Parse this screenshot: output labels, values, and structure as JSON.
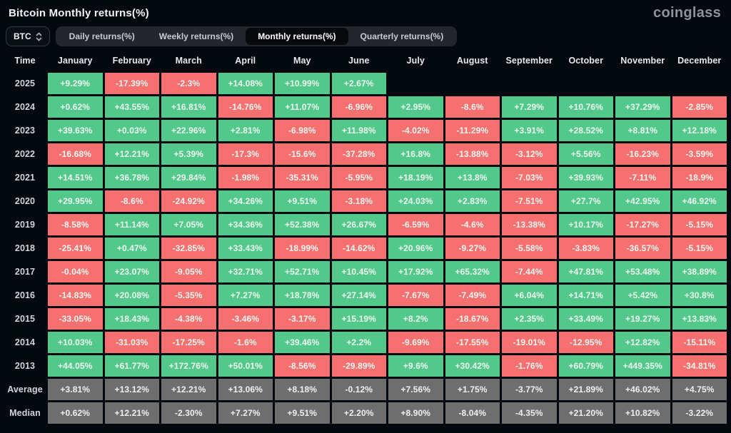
{
  "header": {
    "title": "Bitcoin Monthly returns(%)",
    "logo": "coinglass"
  },
  "toolbar": {
    "coin_selector": "BTC",
    "tabs": [
      {
        "label": "Daily returns(%)",
        "active": false
      },
      {
        "label": "Weekly returns(%)",
        "active": false
      },
      {
        "label": "Monthly returns(%)",
        "active": true
      },
      {
        "label": "Quarterly returns(%)",
        "active": false
      }
    ]
  },
  "colors": {
    "positive": "#52c98a",
    "negative": "#f77070",
    "neutral": "#6e6e6e",
    "background": "#04080f"
  },
  "chart_data": {
    "type": "table",
    "title": "Bitcoin Monthly returns(%)",
    "columns": [
      "Time",
      "January",
      "February",
      "March",
      "April",
      "May",
      "June",
      "July",
      "August",
      "September",
      "October",
      "November",
      "December"
    ],
    "rows": [
      {
        "label": "2025",
        "values": [
          "+9.29%",
          "-17.39%",
          "-2.3%",
          "+14.08%",
          "+10.99%",
          "+2.67%",
          "",
          "",
          "",
          "",
          "",
          ""
        ]
      },
      {
        "label": "2024",
        "values": [
          "+0.62%",
          "+43.55%",
          "+16.81%",
          "-14.76%",
          "+11.07%",
          "-6.96%",
          "+2.95%",
          "-8.6%",
          "+7.29%",
          "+10.76%",
          "+37.29%",
          "-2.85%"
        ]
      },
      {
        "label": "2023",
        "values": [
          "+39.63%",
          "+0.03%",
          "+22.96%",
          "+2.81%",
          "-6.98%",
          "+11.98%",
          "-4.02%",
          "-11.29%",
          "+3.91%",
          "+28.52%",
          "+8.81%",
          "+12.18%"
        ]
      },
      {
        "label": "2022",
        "values": [
          "-16.68%",
          "+12.21%",
          "+5.39%",
          "-17.3%",
          "-15.6%",
          "-37.28%",
          "+16.8%",
          "-13.88%",
          "-3.12%",
          "+5.56%",
          "-16.23%",
          "-3.59%"
        ]
      },
      {
        "label": "2021",
        "values": [
          "+14.51%",
          "+36.78%",
          "+29.84%",
          "-1.98%",
          "-35.31%",
          "-5.95%",
          "+18.19%",
          "+13.8%",
          "-7.03%",
          "+39.93%",
          "-7.11%",
          "-18.9%"
        ]
      },
      {
        "label": "2020",
        "values": [
          "+29.95%",
          "-8.6%",
          "-24.92%",
          "+34.26%",
          "+9.51%",
          "-3.18%",
          "+24.03%",
          "+2.83%",
          "-7.51%",
          "+27.7%",
          "+42.95%",
          "+46.92%"
        ]
      },
      {
        "label": "2019",
        "values": [
          "-8.58%",
          "+11.14%",
          "+7.05%",
          "+34.36%",
          "+52.38%",
          "+26.67%",
          "-6.59%",
          "-4.6%",
          "-13.38%",
          "+10.17%",
          "-17.27%",
          "-5.15%"
        ]
      },
      {
        "label": "2018",
        "values": [
          "-25.41%",
          "+0.47%",
          "-32.85%",
          "+33.43%",
          "-18.99%",
          "-14.62%",
          "+20.96%",
          "-9.27%",
          "-5.58%",
          "-3.83%",
          "-36.57%",
          "-5.15%"
        ]
      },
      {
        "label": "2017",
        "values": [
          "-0.04%",
          "+23.07%",
          "-9.05%",
          "+32.71%",
          "+52.71%",
          "+10.45%",
          "+17.92%",
          "+65.32%",
          "-7.44%",
          "+47.81%",
          "+53.48%",
          "+38.89%"
        ]
      },
      {
        "label": "2016",
        "values": [
          "-14.83%",
          "+20.08%",
          "-5.35%",
          "+7.27%",
          "+18.78%",
          "+27.14%",
          "-7.67%",
          "-7.49%",
          "+6.04%",
          "+14.71%",
          "+5.42%",
          "+30.8%"
        ]
      },
      {
        "label": "2015",
        "values": [
          "-33.05%",
          "+18.43%",
          "-4.38%",
          "-3.46%",
          "-3.17%",
          "+15.19%",
          "+8.2%",
          "-18.67%",
          "+2.35%",
          "+33.49%",
          "+19.27%",
          "+13.83%"
        ]
      },
      {
        "label": "2014",
        "values": [
          "+10.03%",
          "-31.03%",
          "-17.25%",
          "-1.6%",
          "+39.46%",
          "+2.2%",
          "-9.69%",
          "-17.55%",
          "-19.01%",
          "-12.95%",
          "+12.82%",
          "-15.11%"
        ]
      },
      {
        "label": "2013",
        "values": [
          "+44.05%",
          "+61.77%",
          "+172.76%",
          "+50.01%",
          "-8.56%",
          "-29.89%",
          "+9.6%",
          "+30.42%",
          "-1.76%",
          "+60.79%",
          "+449.35%",
          "-34.81%"
        ]
      },
      {
        "label": "Average",
        "style": "neutral",
        "values": [
          "+3.81%",
          "+13.12%",
          "+12.21%",
          "+13.06%",
          "+8.18%",
          "-0.12%",
          "+7.56%",
          "+1.75%",
          "-3.77%",
          "+21.89%",
          "+46.02%",
          "+4.75%"
        ]
      },
      {
        "label": "Median",
        "style": "neutral",
        "values": [
          "+0.62%",
          "+12.21%",
          "-2.30%",
          "+7.27%",
          "+9.51%",
          "+2.20%",
          "+8.90%",
          "-8.04%",
          "-4.35%",
          "+21.20%",
          "+10.82%",
          "-3.22%"
        ]
      }
    ]
  }
}
